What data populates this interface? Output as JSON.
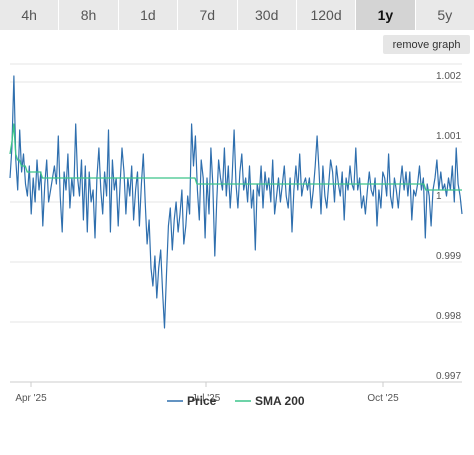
{
  "tabs": [
    {
      "label": "4h",
      "active": false
    },
    {
      "label": "8h",
      "active": false
    },
    {
      "label": "1d",
      "active": false
    },
    {
      "label": "7d",
      "active": false
    },
    {
      "label": "30d",
      "active": false
    },
    {
      "label": "120d",
      "active": false
    },
    {
      "label": "1y",
      "active": true
    },
    {
      "label": "5y",
      "active": false
    }
  ],
  "remove_graph_label": "remove graph",
  "colors": {
    "price": "#2f6fae",
    "sma": "#3cc48a",
    "grid": "#e6e6e6",
    "active_tab": "#d4d4d4",
    "tab": "#e9e9e9"
  },
  "chart_data": {
    "type": "line",
    "x_tick_labels": [
      "Apr '25",
      "Jul '25",
      "Oct '25"
    ],
    "y_tick_labels": [
      "1.002",
      "1.001",
      "1",
      "0.999",
      "0.998",
      "0.997"
    ],
    "ylim": [
      0.997,
      1.0023
    ],
    "grid": "horizontal",
    "legend_position": "bottom",
    "series": [
      {
        "name": "Price",
        "color": "#2f6fae",
        "values": [
          1.0004,
          1.0009,
          1.0021,
          1.0007,
          1.0002,
          1.0012,
          1.0005,
          1.0008,
          1.0003,
          1.0001,
          1.0006,
          0.9998,
          1.0004,
          1.0,
          1.0007,
          1.0002,
          1.0005,
          0.9996,
          1.0003,
          1.0007,
          1.0,
          1.0002,
          1.0004,
          1.0006,
          1.0003,
          1.0011,
          1.0001,
          0.9995,
          1.0005,
          1.0002,
          1.0008,
          0.9999,
          1.0004,
          1.0001,
          1.0013,
          1.0004,
          1.0001,
          1.0007,
          0.9997,
          1.0006,
          0.9995,
          1.0005,
          1.0,
          1.0002,
          0.9994,
          1.0004,
          1.0009,
          1.0002,
          0.9998,
          1.0005,
          1.0001,
          1.0012,
          0.9995,
          1.0007,
          1.0002,
          1.0004,
          0.9996,
          1.0003,
          1.0009,
          1.0005,
          0.9998,
          1.0004,
          1.0001,
          1.0006,
          0.9997,
          1.0002,
          1.0005,
          0.9996,
          1.0003,
          1.0008,
          1.0,
          0.9993,
          0.9997,
          0.9989,
          0.9986,
          0.9991,
          0.9984,
          0.9989,
          0.9992,
          0.9985,
          0.9979,
          0.9988,
          0.9996,
          0.9999,
          0.9992,
          0.9997,
          1.0,
          0.9995,
          0.9998,
          1.0002,
          0.9993,
          0.9996,
          1.0001,
          0.9998,
          1.0013,
          1.0006,
          1.0011,
          1.0002,
          0.9997,
          1.0007,
          1.0004,
          0.9994,
          1.0004,
          0.9998,
          1.0009,
          1.0003,
          0.9991,
          1.0,
          1.0007,
          1.0004,
          1.0002,
          1.0009,
          1.0001,
          1.0006,
          0.9999,
          1.0004,
          1.0012,
          1.0003,
          0.9999,
          1.0005,
          1.0008,
          1.0002,
          1.0004,
          1.0,
          1.0006,
          0.9999,
          1.0002,
          0.9992,
          1.0003,
          1.0001,
          1.0006,
          0.9999,
          1.0005,
          1.0002,
          1.0004,
          1.0,
          1.0007,
          0.9998,
          1.0001,
          1.0004,
          1.0,
          1.0003,
          1.0006,
          1.0001,
          0.9999,
          1.0004,
          0.9995,
          1.0002,
          1.0006,
          1.0002,
          1.0008,
          1.0001,
          1.0003,
          1.0004,
          1.0002,
          1.0004,
          0.9999,
          1.0002,
          1.0006,
          1.0011,
          1.0005,
          0.9998,
          1.0006,
          1.0001,
          0.9999,
          1.0003,
          1.0007,
          1.0005,
          1.0,
          1.0006,
          1.0003,
          1.0001,
          1.0005,
          0.9997,
          1.0004,
          1.0002,
          1.0006,
          1.0003,
          1.0002,
          1.0009,
          1.0002,
          1.0004,
          0.9999,
          1.0001,
          0.9998,
          1.0002,
          1.0005,
          1.0002,
          1.0001,
          1.0004,
          0.9996,
          1.0002,
          0.9999,
          1.0005,
          1.0004,
          1.0001,
          1.0008,
          1.0001,
          0.9999,
          1.0004,
          1.0002,
          0.9999,
          1.0003,
          1.0006,
          1.0002,
          1.0005,
          1.0001,
          1.0005,
          0.9997,
          1.0002,
          1.0001,
          1.0003,
          1.0006,
          1.0002,
          1.0004,
          0.9994,
          1.0003,
          1.0001,
          0.9996,
          1.0002,
          1.0004,
          1.0007,
          1.0002,
          1.0005,
          1.0002,
          1.0003,
          1.0001,
          1.0004,
          1.0002,
          1.0006,
          1.0,
          1.0009,
          1.0003,
          1.0001,
          0.9998
        ]
      },
      {
        "name": "SMA 200",
        "color": "#3cc48a",
        "values": [
          1.0008,
          1.001,
          1.0013,
          1.0008,
          1.0007,
          1.0007,
          1.0006,
          1.0006,
          1.0006,
          1.0005,
          1.0005,
          1.0005,
          1.0005,
          1.0005,
          1.0005,
          1.0005,
          1.0005,
          1.0004,
          1.0004,
          1.0004,
          1.0004,
          1.0004,
          1.0004,
          1.0004,
          1.0004,
          1.0004,
          1.0004,
          1.0004,
          1.0004,
          1.0004,
          1.0004,
          1.0004,
          1.0004,
          1.0004,
          1.0004,
          1.0004,
          1.0004,
          1.0004,
          1.0004,
          1.0004,
          1.0004,
          1.0004,
          1.0004,
          1.0004,
          1.0004,
          1.0004,
          1.0004,
          1.0004,
          1.0004,
          1.0004,
          1.0004,
          1.0004,
          1.0004,
          1.0004,
          1.0004,
          1.0004,
          1.0004,
          1.0004,
          1.0004,
          1.0004,
          1.0004,
          1.0004,
          1.0004,
          1.0004,
          1.0004,
          1.0004,
          1.0004,
          1.0004,
          1.0004,
          1.0004,
          1.0004,
          1.0004,
          1.0004,
          1.0004,
          1.0004,
          1.0004,
          1.0004,
          1.0004,
          1.0004,
          1.0004,
          1.0004,
          1.0004,
          1.0004,
          1.0004,
          1.0004,
          1.0004,
          1.0004,
          1.0004,
          1.0004,
          1.0004,
          1.0004,
          1.0004,
          1.0004,
          1.0004,
          1.0004,
          1.0004,
          1.0004,
          1.0004,
          1.0003,
          1.0003,
          1.0003,
          1.0003,
          1.0003,
          1.0003,
          1.0003,
          1.0003,
          1.0003,
          1.0003,
          1.0003,
          1.0003,
          1.0003,
          1.0003,
          1.0003,
          1.0003,
          1.0003,
          1.0003,
          1.0003,
          1.0003,
          1.0003,
          1.0003,
          1.0003,
          1.0003,
          1.0003,
          1.0003,
          1.0003,
          1.0003,
          1.0003,
          1.0003,
          1.0003,
          1.0003,
          1.0003,
          1.0003,
          1.0003,
          1.0003,
          1.0003,
          1.0003,
          1.0003,
          1.0003,
          1.0003,
          1.0003,
          1.0003,
          1.0003,
          1.0003,
          1.0003,
          1.0003,
          1.0003,
          1.0003,
          1.0003,
          1.0003,
          1.0003,
          1.0003,
          1.0003,
          1.0003,
          1.0003,
          1.0003,
          1.0003,
          1.0003,
          1.0003,
          1.0003,
          1.0003,
          1.0003,
          1.0003,
          1.0003,
          1.0003,
          1.0003,
          1.0003,
          1.0003,
          1.0003,
          1.0003,
          1.0003,
          1.0003,
          1.0003,
          1.0003,
          1.0003,
          1.0003,
          1.0003,
          1.0003,
          1.0003,
          1.0003,
          1.0003,
          1.0003,
          1.0003,
          1.0003,
          1.0003,
          1.0003,
          1.0003,
          1.0003,
          1.0003,
          1.0003,
          1.0003,
          1.0003,
          1.0003,
          1.0003,
          1.0003,
          1.0003,
          1.0003,
          1.0003,
          1.0003,
          1.0003,
          1.0003,
          1.0003,
          1.0003,
          1.0003,
          1.0003,
          1.0003,
          1.0003,
          1.0003,
          1.0003,
          1.0003,
          1.0003,
          1.0003,
          1.0003,
          1.0003,
          1.0003,
          1.0003,
          1.0003,
          1.0003,
          1.0003,
          1.0002,
          1.0002,
          1.0002,
          1.0002,
          1.0002,
          1.0002,
          1.0002,
          1.0002,
          1.0002,
          1.0002,
          1.0002,
          1.0002,
          1.0002,
          1.0002,
          1.0002,
          1.0002,
          1.0002,
          1.0002,
          1.0002,
          1.0002
        ]
      }
    ]
  }
}
